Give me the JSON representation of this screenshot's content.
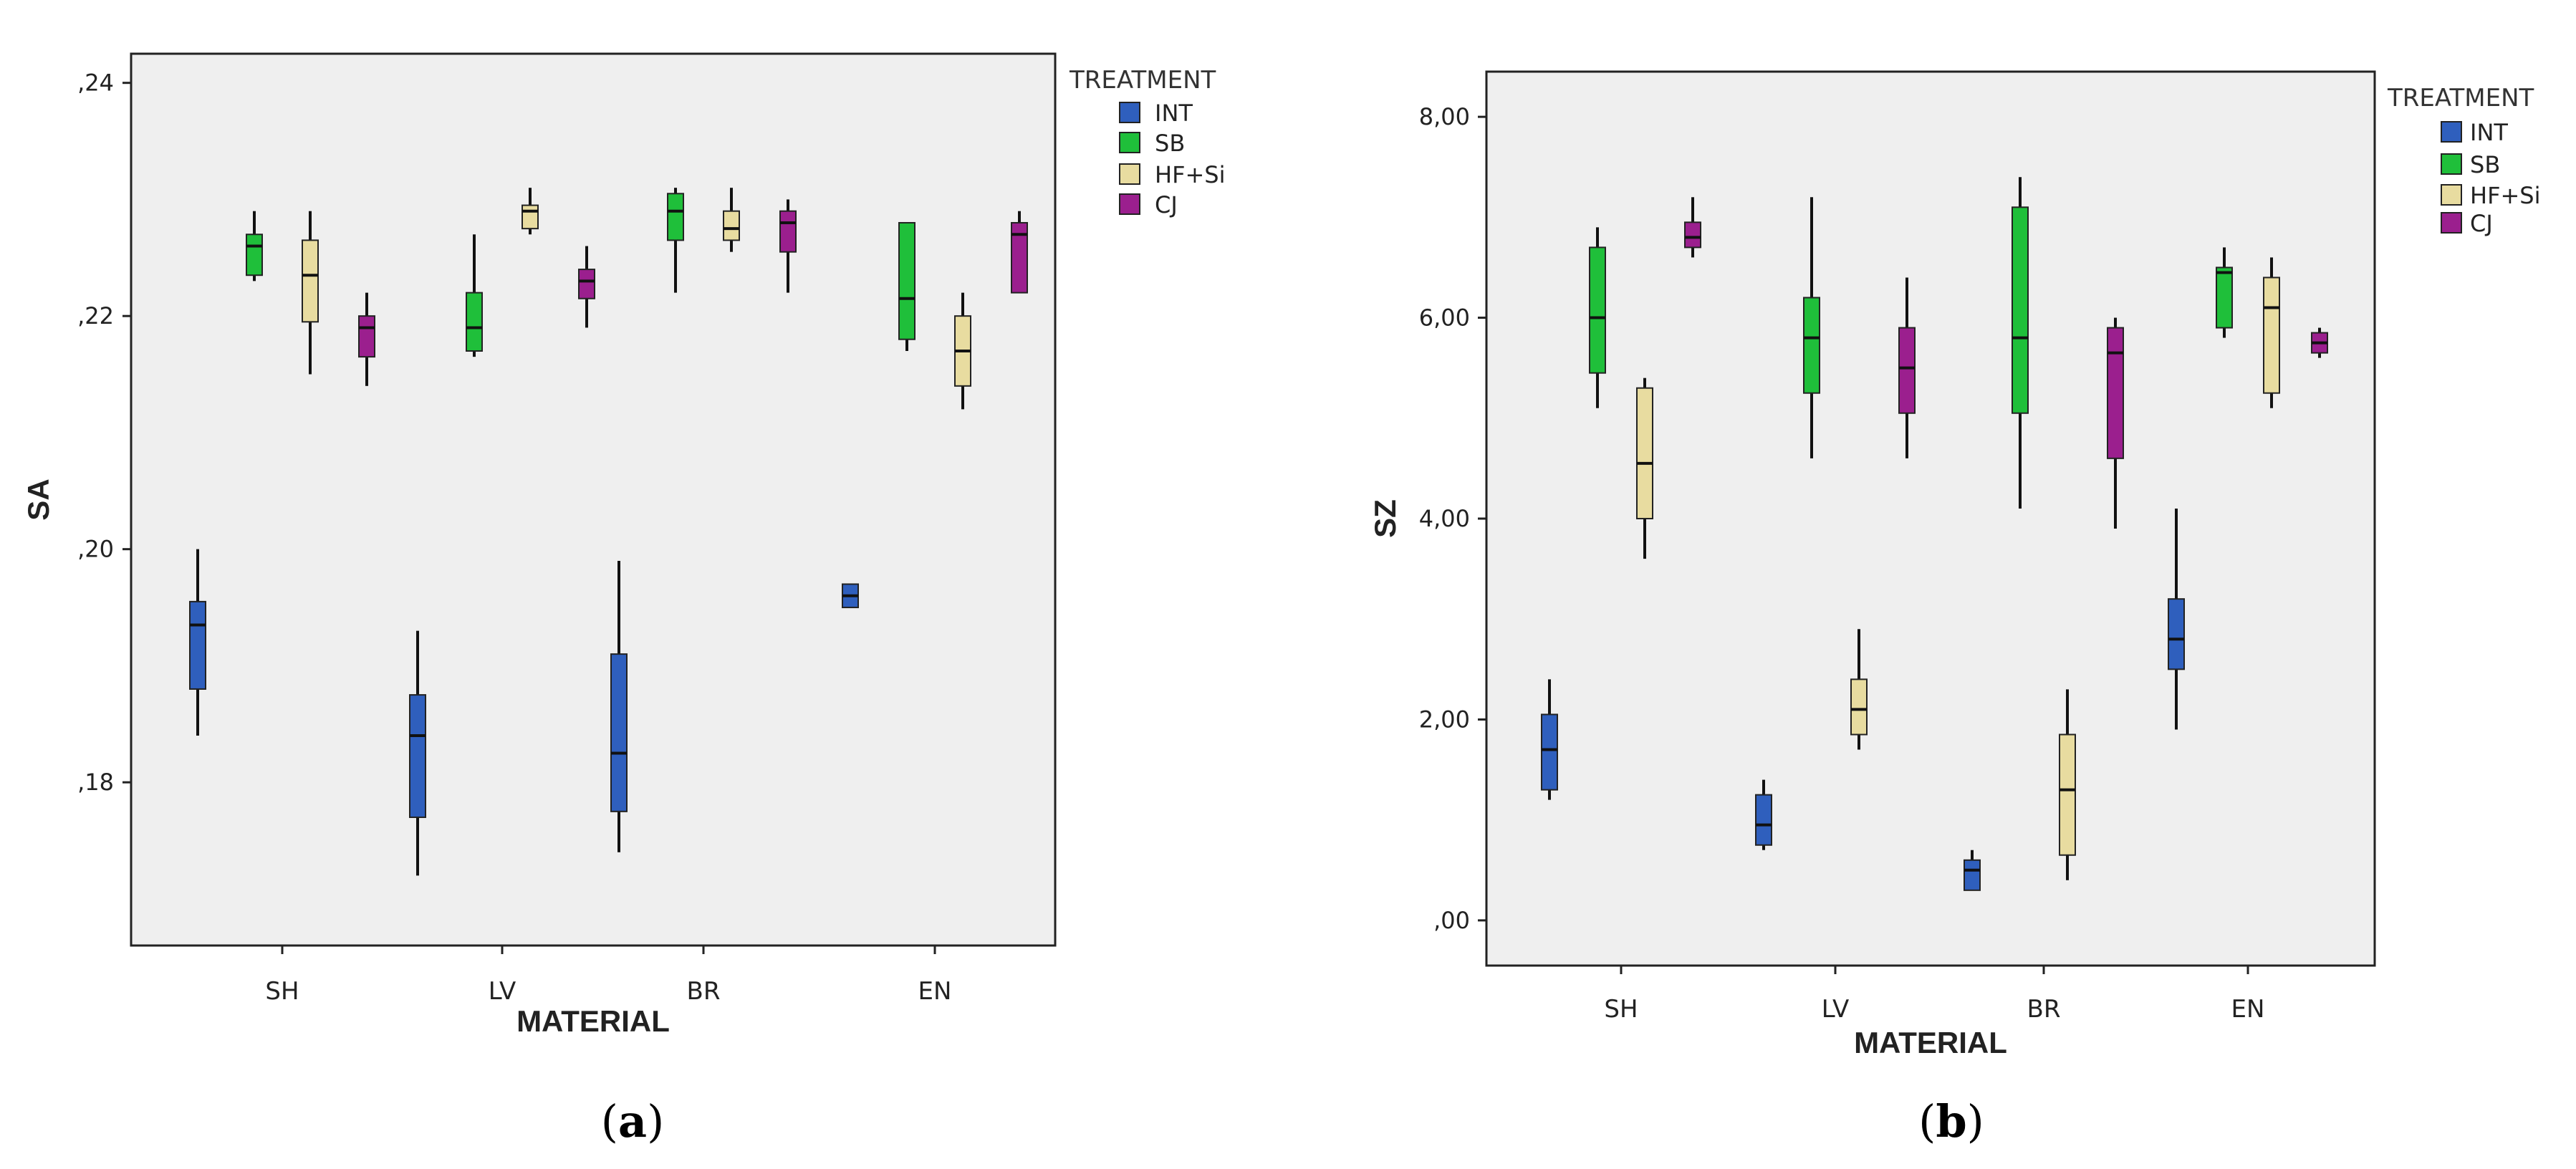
{
  "chart_data": [
    {
      "type": "boxplot",
      "panel_label": "a",
      "ylabel": "SA",
      "xlabel": "MATERIAL",
      "legend_title": "TREATMENT",
      "legend_position": "top-right",
      "categories": [
        "SH",
        "LV",
        "BR",
        "EN"
      ],
      "ylim": [
        0.166,
        0.2425
      ],
      "yticks": [
        0.18,
        0.2,
        0.22,
        0.24
      ],
      "ytick_labels": [
        ",18",
        ",20",
        ",22",
        ",24"
      ],
      "series": [
        {
          "name": "INT",
          "color": "#2f5fbd",
          "boxes": [
            {
              "min": 0.184,
              "q1": 0.188,
              "median": 0.1935,
              "q3": 0.1955,
              "max": 0.2
            },
            {
              "min": 0.172,
              "q1": 0.177,
              "median": 0.184,
              "q3": 0.1875,
              "max": 0.193
            },
            {
              "min": 0.174,
              "q1": 0.1775,
              "median": 0.1825,
              "q3": 0.191,
              "max": 0.199
            },
            {
              "min": 0.195,
              "q1": 0.195,
              "median": 0.196,
              "q3": 0.197,
              "max": 0.197
            }
          ]
        },
        {
          "name": "SB",
          "color": "#1fbf3a",
          "boxes": [
            {
              "min": 0.223,
              "q1": 0.2235,
              "median": 0.226,
              "q3": 0.227,
              "max": 0.229
            },
            {
              "min": 0.2165,
              "q1": 0.217,
              "median": 0.219,
              "q3": 0.222,
              "max": 0.227
            },
            {
              "min": 0.222,
              "q1": 0.2265,
              "median": 0.229,
              "q3": 0.2305,
              "max": 0.231
            },
            {
              "min": 0.217,
              "q1": 0.218,
              "median": 0.2215,
              "q3": 0.228,
              "max": 0.228
            }
          ]
        },
        {
          "name": "HF+Si",
          "color": "#e8dca0",
          "boxes": [
            {
              "min": 0.215,
              "q1": 0.2195,
              "median": 0.2235,
              "q3": 0.2265,
              "max": 0.229
            },
            {
              "min": 0.227,
              "q1": 0.2275,
              "median": 0.229,
              "q3": 0.2295,
              "max": 0.231
            },
            {
              "min": 0.2255,
              "q1": 0.2265,
              "median": 0.2275,
              "q3": 0.229,
              "max": 0.231
            },
            {
              "min": 0.212,
              "q1": 0.214,
              "median": 0.217,
              "q3": 0.22,
              "max": 0.222
            }
          ]
        },
        {
          "name": "CJ",
          "color": "#9b1f8e",
          "boxes": [
            {
              "min": 0.214,
              "q1": 0.2165,
              "median": 0.219,
              "q3": 0.22,
              "max": 0.222
            },
            {
              "min": 0.219,
              "q1": 0.2215,
              "median": 0.223,
              "q3": 0.224,
              "max": 0.226
            },
            {
              "min": 0.222,
              "q1": 0.2255,
              "median": 0.228,
              "q3": 0.229,
              "max": 0.23
            },
            {
              "min": 0.222,
              "q1": 0.222,
              "median": 0.227,
              "q3": 0.228,
              "max": 0.229
            }
          ]
        }
      ]
    },
    {
      "type": "boxplot",
      "panel_label": "b",
      "ylabel": "SZ",
      "xlabel": "MATERIAL",
      "legend_title": "TREATMENT",
      "legend_position": "top-right",
      "categories": [
        "SH",
        "LV",
        "BR",
        "EN"
      ],
      "ylim": [
        -0.45,
        8.45
      ],
      "yticks": [
        0,
        2,
        4,
        6,
        8
      ],
      "ytick_labels": [
        ",00",
        "2,00",
        "4,00",
        "6,00",
        "8,00"
      ],
      "series": [
        {
          "name": "INT",
          "color": "#2f5fbd",
          "boxes": [
            {
              "min": 1.2,
              "q1": 1.3,
              "median": 1.7,
              "q3": 2.05,
              "max": 2.4
            },
            {
              "min": 0.7,
              "q1": 0.75,
              "median": 0.95,
              "q3": 1.25,
              "max": 1.4
            },
            {
              "min": 0.3,
              "q1": 0.3,
              "median": 0.5,
              "q3": 0.6,
              "max": 0.7
            },
            {
              "min": 1.9,
              "q1": 2.5,
              "median": 2.8,
              "q3": 3.2,
              "max": 4.1
            }
          ]
        },
        {
          "name": "SB",
          "color": "#1fbf3a",
          "boxes": [
            {
              "min": 5.1,
              "q1": 5.45,
              "median": 6.0,
              "q3": 6.7,
              "max": 6.9
            },
            {
              "min": 4.6,
              "q1": 5.25,
              "median": 5.8,
              "q3": 6.2,
              "max": 7.2
            },
            {
              "min": 4.1,
              "q1": 5.05,
              "median": 5.8,
              "q3": 7.1,
              "max": 7.4
            },
            {
              "min": 5.8,
              "q1": 5.9,
              "median": 6.45,
              "q3": 6.5,
              "max": 6.7
            }
          ]
        },
        {
          "name": "HF+Si",
          "color": "#e8dca0",
          "boxes": [
            {
              "min": 3.6,
              "q1": 4.0,
              "median": 4.55,
              "q3": 5.3,
              "max": 5.4
            },
            {
              "min": 1.7,
              "q1": 1.85,
              "median": 2.1,
              "q3": 2.4,
              "max": 2.9
            },
            {
              "min": 0.4,
              "q1": 0.65,
              "median": 1.3,
              "q3": 1.85,
              "max": 2.3
            },
            {
              "min": 5.1,
              "q1": 5.25,
              "median": 6.1,
              "q3": 6.4,
              "max": 6.6
            }
          ]
        },
        {
          "name": "CJ",
          "color": "#9b1f8e",
          "boxes": [
            {
              "min": 6.6,
              "q1": 6.7,
              "median": 6.8,
              "q3": 6.95,
              "max": 7.2
            },
            {
              "min": 4.6,
              "q1": 5.05,
              "median": 5.5,
              "q3": 5.9,
              "max": 6.4
            },
            {
              "min": 3.9,
              "q1": 4.6,
              "median": 5.65,
              "q3": 5.9,
              "max": 6.0
            },
            {
              "min": 5.6,
              "q1": 5.65,
              "median": 5.75,
              "q3": 5.85,
              "max": 5.9
            }
          ]
        }
      ]
    }
  ]
}
